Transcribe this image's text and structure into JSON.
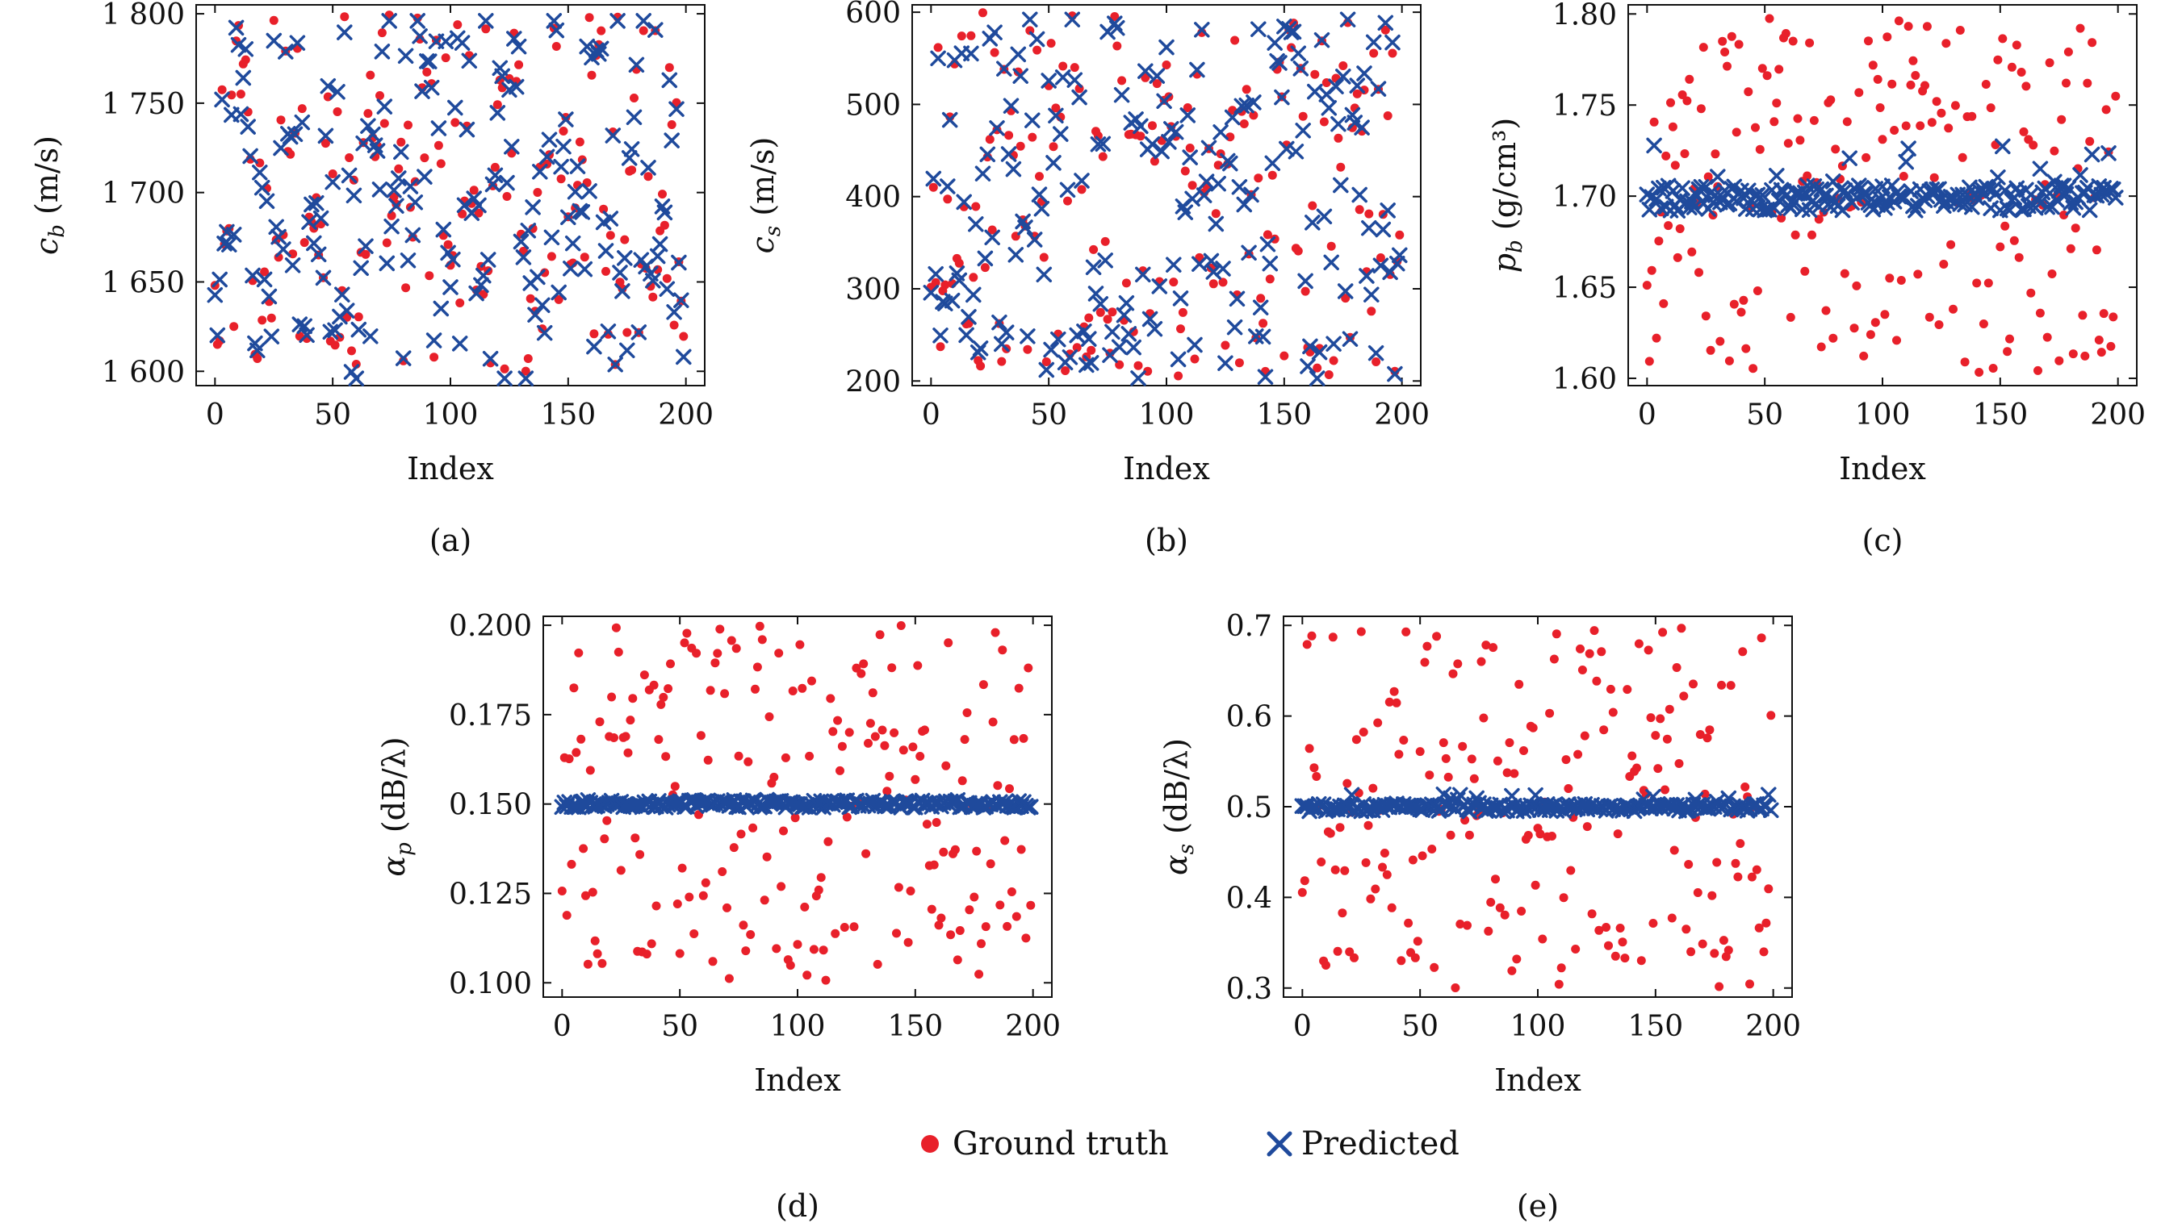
{
  "colors": {
    "ground_truth": "#e8202a",
    "predicted": "#1f4a9c"
  },
  "legend": {
    "ground_truth_label": "Ground truth",
    "predicted_label": "Predicted",
    "ground_truth_icon": "red-dot-marker",
    "predicted_icon": "blue-x-marker"
  },
  "chart_data": [
    {
      "type": "scatter",
      "caption": "(a)",
      "xlabel": "Index",
      "ylabel": "c_b (m/s)",
      "ylabel_main": "c",
      "ylabel_sub": "b",
      "ylabel_unit": " (m/s)",
      "xlim": [
        -8,
        208
      ],
      "ylim": [
        1592,
        1805
      ],
      "xticks": [
        0,
        50,
        100,
        150,
        200
      ],
      "xtick_labels": [
        "0",
        "50",
        "100",
        "150",
        "200"
      ],
      "yticks": [
        1600,
        1650,
        1700,
        1750,
        1800
      ],
      "ytick_labels": [
        "1 600",
        "1 650",
        "1 700",
        "1 750",
        "1 800"
      ],
      "gen": {
        "seed": 11,
        "n": 200,
        "gt_min": 1600,
        "gt_max": 1800,
        "mode": "track",
        "err": 12
      }
    },
    {
      "type": "scatter",
      "caption": "(b)",
      "xlabel": "Index",
      "ylabel": "c_s (m/s)",
      "ylabel_main": "c",
      "ylabel_sub": "s",
      "ylabel_unit": " (m/s)",
      "xlim": [
        -8,
        208
      ],
      "ylim": [
        195,
        608
      ],
      "xticks": [
        0,
        50,
        100,
        150,
        200
      ],
      "xtick_labels": [
        "0",
        "50",
        "100",
        "150",
        "200"
      ],
      "yticks": [
        200,
        300,
        400,
        500,
        600
      ],
      "ytick_labels": [
        "200",
        "300",
        "400",
        "500",
        "600"
      ],
      "gen": {
        "seed": 23,
        "n": 200,
        "gt_min": 205,
        "gt_max": 600,
        "mode": "track",
        "err": 22
      }
    },
    {
      "type": "scatter",
      "caption": "(c)",
      "xlabel": "Index",
      "ylabel": "p_b (g/cm³)",
      "ylabel_main": "p",
      "ylabel_sub": "b",
      "ylabel_unit": " (g/cm³)",
      "xlim": [
        -8,
        208
      ],
      "ylim": [
        1.596,
        1.805
      ],
      "xticks": [
        0,
        50,
        100,
        150,
        200
      ],
      "xtick_labels": [
        "0",
        "50",
        "100",
        "150",
        "200"
      ],
      "yticks": [
        1.6,
        1.65,
        1.7,
        1.75,
        1.8
      ],
      "ytick_labels": [
        "1.60",
        "1.65",
        "1.70",
        "1.75",
        "1.80"
      ],
      "gen": {
        "seed": 37,
        "n": 200,
        "gt_min": 1.602,
        "gt_max": 1.798,
        "mode": "flat",
        "center": 1.699,
        "spread": 0.007,
        "outlier_max": 0.038
      }
    },
    {
      "type": "scatter",
      "caption": "(d)",
      "xlabel": "Index",
      "ylabel": "α_p (dB/λ)",
      "ylabel_main": "α",
      "ylabel_sub": "p",
      "ylabel_unit": " (dB/λ)",
      "xlim": [
        -8,
        208
      ],
      "ylim": [
        0.096,
        0.2025
      ],
      "xticks": [
        0,
        50,
        100,
        150,
        200
      ],
      "xtick_labels": [
        "0",
        "50",
        "100",
        "150",
        "200"
      ],
      "yticks": [
        0.1,
        0.125,
        0.15,
        0.175,
        0.2
      ],
      "ytick_labels": [
        "0.100",
        "0.125",
        "0.150",
        "0.175",
        "0.200"
      ],
      "gen": {
        "seed": 53,
        "n": 200,
        "gt_min": 0.1,
        "gt_max": 0.2,
        "mode": "flat",
        "center": 0.15,
        "spread": 0.001,
        "outlier_max": 0.0015
      }
    },
    {
      "type": "scatter",
      "caption": "(e)",
      "xlabel": "Index",
      "ylabel": "α_s (dB/λ)",
      "ylabel_main": "α",
      "ylabel_sub": "s",
      "ylabel_unit": " (dB/λ)",
      "xlim": [
        -8,
        208
      ],
      "ylim": [
        0.29,
        0.71
      ],
      "xticks": [
        0,
        50,
        100,
        150,
        200
      ],
      "xtick_labels": [
        "0",
        "50",
        "100",
        "150",
        "200"
      ],
      "yticks": [
        0.3,
        0.4,
        0.5,
        0.6,
        0.7
      ],
      "ytick_labels": [
        "0.3",
        "0.4",
        "0.5",
        "0.6",
        "0.7"
      ],
      "gen": {
        "seed": 71,
        "n": 200,
        "gt_min": 0.3,
        "gt_max": 0.7,
        "mode": "flat",
        "center": 0.499,
        "spread": 0.004,
        "outlier_max": 0.016
      }
    }
  ]
}
